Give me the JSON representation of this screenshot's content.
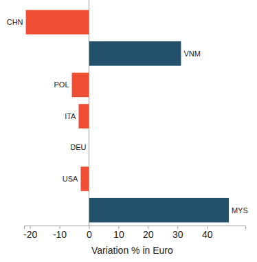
{
  "chart_data": {
    "type": "bar",
    "orientation": "horizontal",
    "x_label": "Variation % in Euro",
    "categories": [
      "CHN",
      "VNM",
      "POL",
      "ITA",
      "DEU",
      "USA",
      "MYS"
    ],
    "values": [
      -21.4,
      31.2,
      -5.8,
      -3.5,
      0,
      -2.8,
      47.4
    ],
    "colors": [
      "#f04e33",
      "#23506b",
      "#f04e33",
      "#f04e33",
      "#f04e33",
      "#f04e33",
      "#23506b"
    ],
    "xlim": [
      -22,
      53
    ],
    "xticks": [
      -20,
      -10,
      0,
      10,
      20,
      30,
      40
    ],
    "grid": false
  }
}
